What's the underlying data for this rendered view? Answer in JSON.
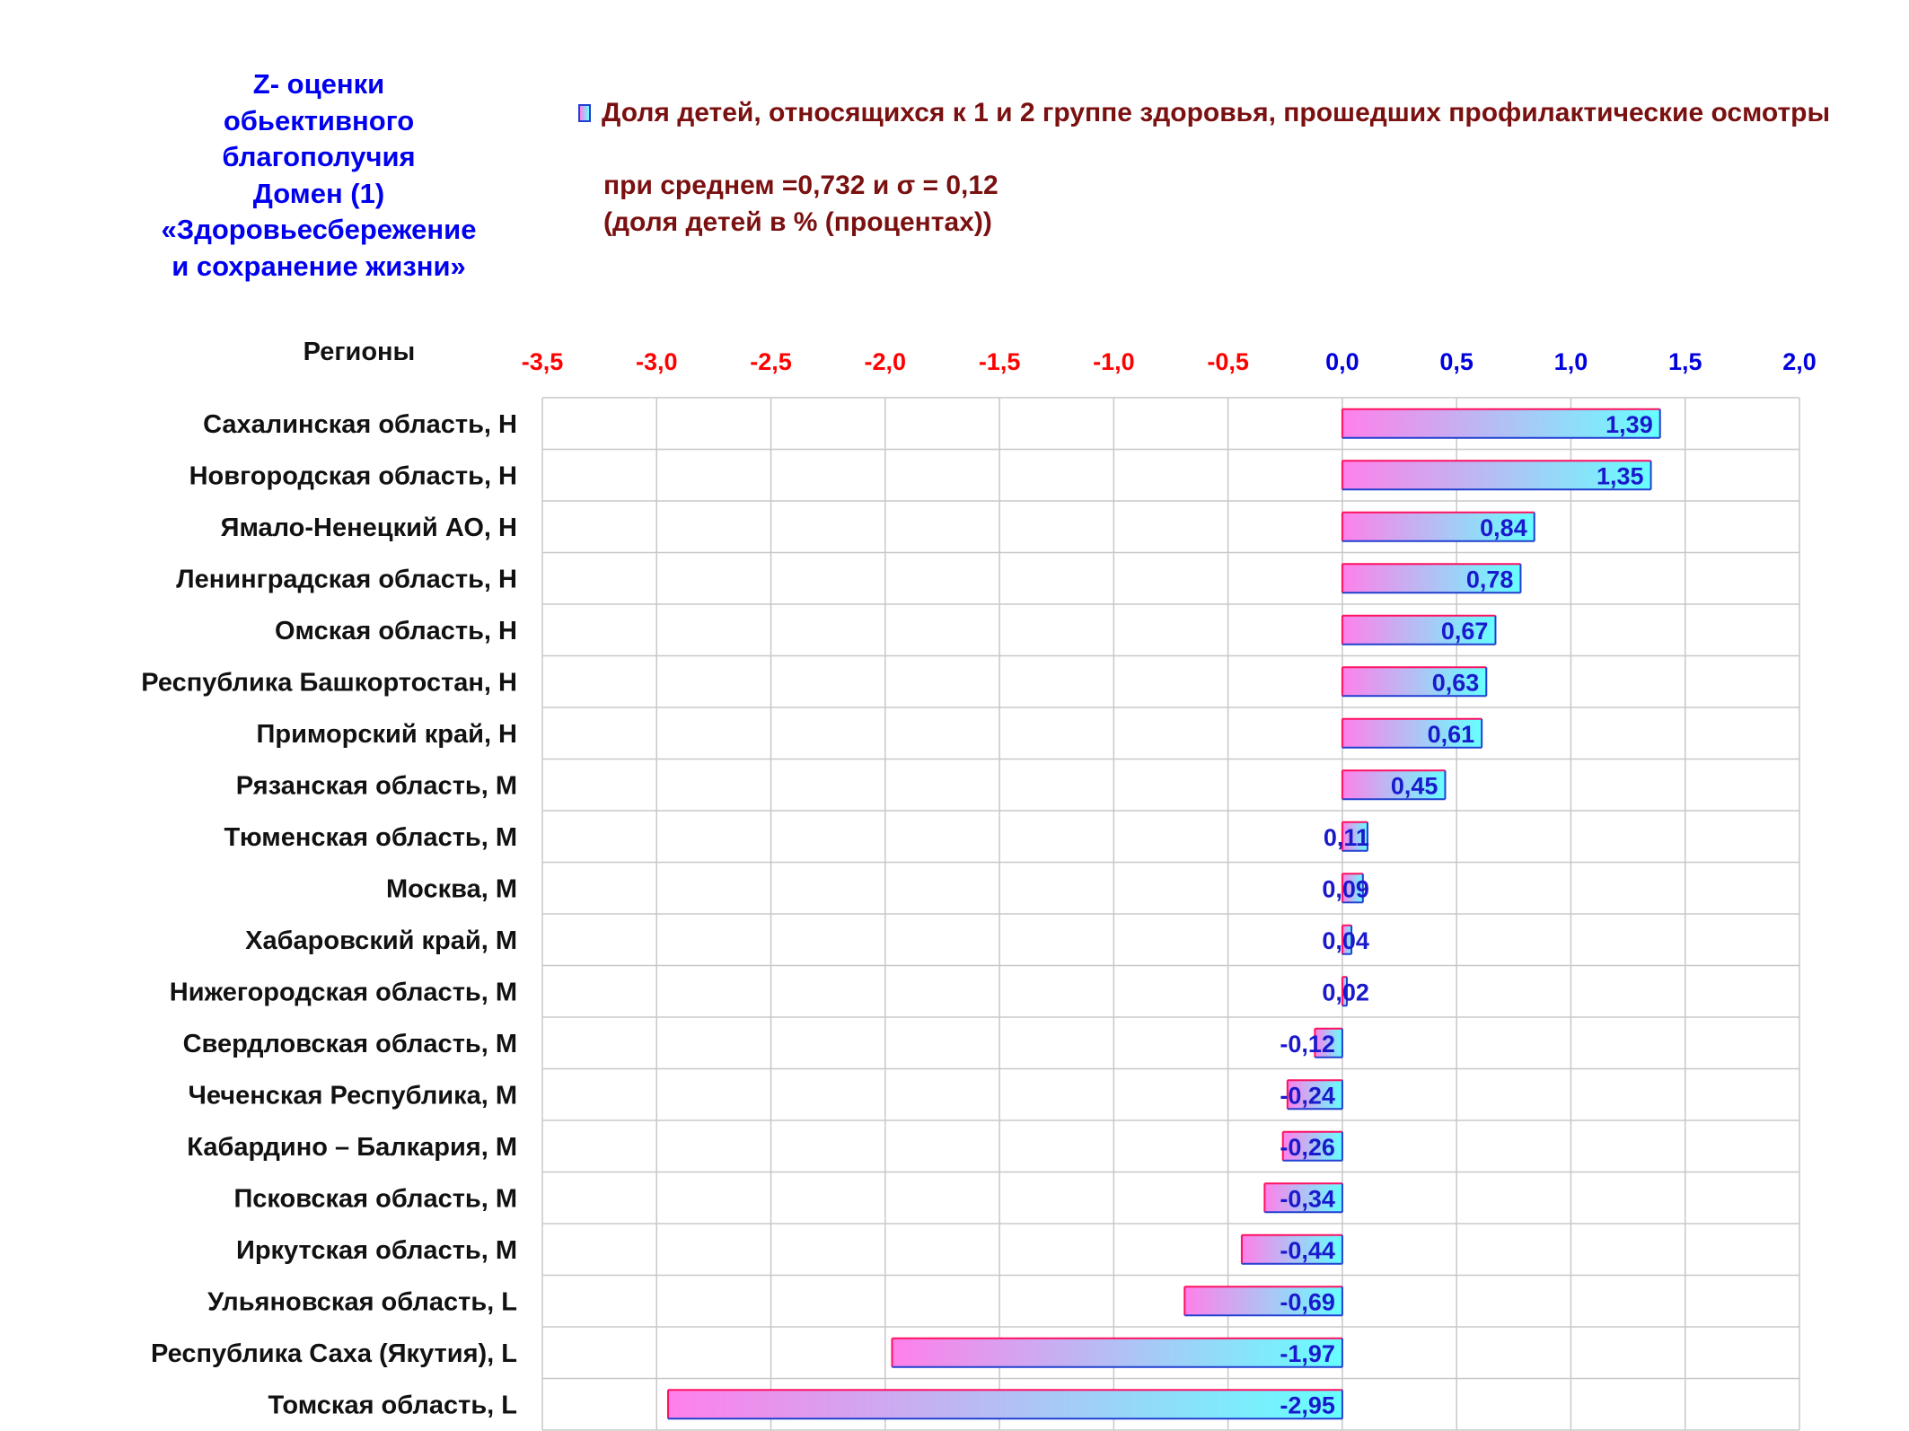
{
  "title_block": {
    "lines": [
      "Z- оценки",
      "обьективного",
      "благополучия",
      "Домен (1)",
      "«Здоровьесбережение",
      "и сохранение жизни»"
    ]
  },
  "legend": {
    "label": "Доля детей, относящихся к 1 и 2 группе здоровья, прошедших профилактические осмотры"
  },
  "note": {
    "line1": "при среднем =0,732  и σ = 0,12",
    "line2": "(доля детей в % (процентах))"
  },
  "colors": {
    "title_blue": "#0000ee",
    "note_red": "#7a1010",
    "negative_tick": "#ff0000",
    "positive_tick": "#0000dd",
    "bar_gradient_start": "#ff80ea",
    "bar_gradient_end": "#66ffff",
    "bar_border_left": "#ff1060",
    "bar_border_right": "#2040d0",
    "value_label": "#1a1acc"
  },
  "chart_data": {
    "type": "bar",
    "orientation": "horizontal",
    "ylabel": "Регионы",
    "xlim": [
      -3.5,
      2.0
    ],
    "xticks": [
      "-3,5",
      "-3,0",
      "-2,5",
      "-2,0",
      "-1,5",
      "-1,0",
      "-0,5",
      "0,0",
      "0,5",
      "1,0",
      "1,5",
      "2,0"
    ],
    "xtick_values": [
      -3.5,
      -3.0,
      -2.5,
      -2.0,
      -1.5,
      -1.0,
      -0.5,
      0.0,
      0.5,
      1.0,
      1.5,
      2.0
    ],
    "grid": true,
    "categories": [
      "Сахалинская область,  H",
      "Новгородская область,  H",
      "Ямало-Ненецкий АО,  H",
      "Ленинградская область,  H",
      "Омская область,  H",
      "Республика Башкортостан,  H",
      "Приморский край,  H",
      "Рязанская область,  M",
      "Тюменская область,  M",
      "Москва,  M",
      "Хабаровский край,  M",
      "Нижегородская область,  M",
      "Свердловская область,  M",
      "Чеченская Республика,  M",
      "Кабардино – Балкария,  M",
      "Псковская область,  M",
      "Иркутская область,  M",
      "Ульяновская область,  L",
      "Республика Саха (Якутия),  L",
      "Томская область,  L"
    ],
    "values": [
      1.39,
      1.35,
      0.84,
      0.78,
      0.67,
      0.63,
      0.61,
      0.45,
      0.11,
      0.09,
      0.04,
      0.02,
      -0.12,
      -0.24,
      -0.26,
      -0.34,
      -0.44,
      -0.69,
      -1.97,
      -2.95
    ],
    "value_labels": [
      "1,39",
      "1,35",
      "0,84",
      "0,78",
      "0,67",
      "0,63",
      "0,61",
      "0,45",
      "0,11",
      "0,09",
      "0,04",
      "0,02",
      "-0,12",
      "-0,24",
      "-0,26",
      "-0,34",
      "-0,44",
      "-0,69",
      "-1,97",
      "-2,95"
    ]
  }
}
